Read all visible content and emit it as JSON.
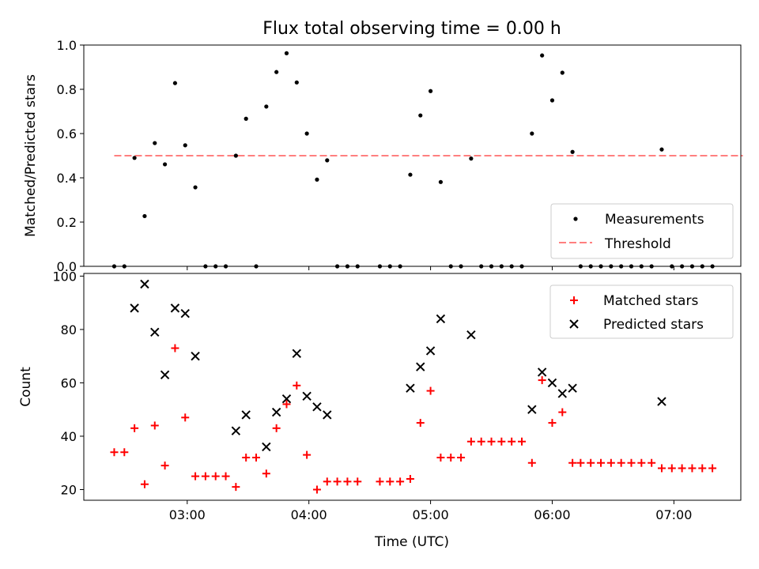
{
  "title": "Flux total observing time = 0.00 h",
  "xlabel": "Time (UTC)",
  "x_ticks": [
    "03:00",
    "04:00",
    "05:00",
    "06:00",
    "07:00"
  ],
  "colors": {
    "measurements": "#000000",
    "threshold": "#ff7f7f",
    "matched": "#ff0000",
    "predicted": "#000000"
  },
  "chart_data": [
    {
      "type": "scatter",
      "ylabel": "Matched/Predicted stars",
      "ylim": [
        0,
        1.0
      ],
      "yticks": [
        "0.0",
        "0.2",
        "0.4",
        "0.6",
        "0.8",
        "1.0"
      ],
      "xlim": [
        "02:09",
        "07:33"
      ],
      "grid": false,
      "legend_position": "lower-right",
      "legend": {
        "measurements": "Measurements",
        "threshold": "Threshold"
      },
      "threshold": {
        "value": 0.5,
        "x": [
          "02:24",
          "07:34"
        ]
      },
      "series": [
        {
          "name": "Measurements",
          "points": [
            [
              "02:24",
              0.0
            ],
            [
              "02:29",
              0.0
            ],
            [
              "02:34",
              0.49
            ],
            [
              "02:39",
              0.227
            ],
            [
              "02:44",
              0.557
            ],
            [
              "02:49",
              0.461
            ],
            [
              "02:54",
              0.828
            ],
            [
              "02:59",
              0.547
            ],
            [
              "03:04",
              0.357
            ],
            [
              "03:09",
              0.0
            ],
            [
              "03:14",
              0.0
            ],
            [
              "03:19",
              0.0
            ],
            [
              "03:24",
              0.5
            ],
            [
              "03:29",
              0.667
            ],
            [
              "03:34",
              0.0
            ],
            [
              "03:39",
              0.722
            ],
            [
              "03:44",
              0.878
            ],
            [
              "03:49",
              0.963
            ],
            [
              "03:54",
              0.831
            ],
            [
              "03:59",
              0.6
            ],
            [
              "04:04",
              0.392
            ],
            [
              "04:09",
              0.479
            ],
            [
              "04:14",
              0.0
            ],
            [
              "04:19",
              0.0
            ],
            [
              "04:24",
              0.0
            ],
            [
              "04:35",
              0.0
            ],
            [
              "04:40",
              0.0
            ],
            [
              "04:45",
              0.0
            ],
            [
              "04:50",
              0.414
            ],
            [
              "04:55",
              0.682
            ],
            [
              "05:00",
              0.792
            ],
            [
              "05:05",
              0.381
            ],
            [
              "05:10",
              0.0
            ],
            [
              "05:15",
              0.0
            ],
            [
              "05:20",
              0.487
            ],
            [
              "05:25",
              0.0
            ],
            [
              "05:30",
              0.0
            ],
            [
              "05:35",
              0.0
            ],
            [
              "05:40",
              0.0
            ],
            [
              "05:45",
              0.0
            ],
            [
              "05:50",
              0.6
            ],
            [
              "05:55",
              0.953
            ],
            [
              "06:00",
              0.75
            ],
            [
              "06:05",
              0.875
            ],
            [
              "06:10",
              0.517
            ],
            [
              "06:14",
              0.0
            ],
            [
              "06:19",
              0.0
            ],
            [
              "06:24",
              0.0
            ],
            [
              "06:29",
              0.0
            ],
            [
              "06:34",
              0.0
            ],
            [
              "06:39",
              0.0
            ],
            [
              "06:44",
              0.0
            ],
            [
              "06:49",
              0.0
            ],
            [
              "06:54",
              0.528
            ],
            [
              "06:59",
              0.0
            ],
            [
              "07:04",
              0.0
            ],
            [
              "07:09",
              0.0
            ],
            [
              "07:14",
              0.0
            ],
            [
              "07:19",
              0.0
            ]
          ]
        }
      ]
    },
    {
      "type": "scatter",
      "ylabel": "Count",
      "ylim": [
        16,
        101
      ],
      "yticks": [
        "20",
        "40",
        "60",
        "80",
        "100"
      ],
      "xlim": [
        "02:09",
        "07:33"
      ],
      "grid": false,
      "legend_position": "upper-right",
      "series": [
        {
          "name": "Matched stars",
          "marker": "+",
          "points": [
            [
              "02:24",
              34
            ],
            [
              "02:29",
              34
            ],
            [
              "02:34",
              43
            ],
            [
              "02:39",
              22
            ],
            [
              "02:44",
              44
            ],
            [
              "02:49",
              29
            ],
            [
              "02:54",
              73
            ],
            [
              "02:59",
              47
            ],
            [
              "03:04",
              25
            ],
            [
              "03:09",
              25
            ],
            [
              "03:14",
              25
            ],
            [
              "03:19",
              25
            ],
            [
              "03:24",
              21
            ],
            [
              "03:29",
              32
            ],
            [
              "03:34",
              32
            ],
            [
              "03:39",
              26
            ],
            [
              "03:44",
              43
            ],
            [
              "03:49",
              52
            ],
            [
              "03:54",
              59
            ],
            [
              "03:59",
              33
            ],
            [
              "04:04",
              20
            ],
            [
              "04:09",
              23
            ],
            [
              "04:14",
              23
            ],
            [
              "04:19",
              23
            ],
            [
              "04:24",
              23
            ],
            [
              "04:35",
              23
            ],
            [
              "04:40",
              23
            ],
            [
              "04:45",
              23
            ],
            [
              "04:50",
              24
            ],
            [
              "04:55",
              45
            ],
            [
              "05:00",
              57
            ],
            [
              "05:05",
              32
            ],
            [
              "05:10",
              32
            ],
            [
              "05:15",
              32
            ],
            [
              "05:20",
              38
            ],
            [
              "05:25",
              38
            ],
            [
              "05:30",
              38
            ],
            [
              "05:35",
              38
            ],
            [
              "05:40",
              38
            ],
            [
              "05:45",
              38
            ],
            [
              "05:50",
              30
            ],
            [
              "05:55",
              61
            ],
            [
              "06:00",
              45
            ],
            [
              "06:05",
              49
            ],
            [
              "06:10",
              30
            ],
            [
              "06:14",
              30
            ],
            [
              "06:19",
              30
            ],
            [
              "06:24",
              30
            ],
            [
              "06:29",
              30
            ],
            [
              "06:34",
              30
            ],
            [
              "06:39",
              30
            ],
            [
              "06:44",
              30
            ],
            [
              "06:49",
              30
            ],
            [
              "06:54",
              28
            ],
            [
              "06:59",
              28
            ],
            [
              "07:04",
              28
            ],
            [
              "07:09",
              28
            ],
            [
              "07:14",
              28
            ],
            [
              "07:19",
              28
            ]
          ]
        },
        {
          "name": "Predicted stars",
          "marker": "x",
          "points": [
            [
              "02:34",
              88
            ],
            [
              "02:39",
              97
            ],
            [
              "02:44",
              79
            ],
            [
              "02:49",
              63
            ],
            [
              "02:54",
              88
            ],
            [
              "02:59",
              86
            ],
            [
              "03:04",
              70
            ],
            [
              "03:24",
              42
            ],
            [
              "03:29",
              48
            ],
            [
              "03:39",
              36
            ],
            [
              "03:44",
              49
            ],
            [
              "03:49",
              54
            ],
            [
              "03:54",
              71
            ],
            [
              "03:59",
              55
            ],
            [
              "04:04",
              51
            ],
            [
              "04:09",
              48
            ],
            [
              "04:50",
              58
            ],
            [
              "04:55",
              66
            ],
            [
              "05:00",
              72
            ],
            [
              "05:05",
              84
            ],
            [
              "05:20",
              78
            ],
            [
              "05:50",
              50
            ],
            [
              "05:55",
              64
            ],
            [
              "06:00",
              60
            ],
            [
              "06:05",
              56
            ],
            [
              "06:10",
              58
            ],
            [
              "06:54",
              53
            ]
          ]
        }
      ]
    }
  ]
}
